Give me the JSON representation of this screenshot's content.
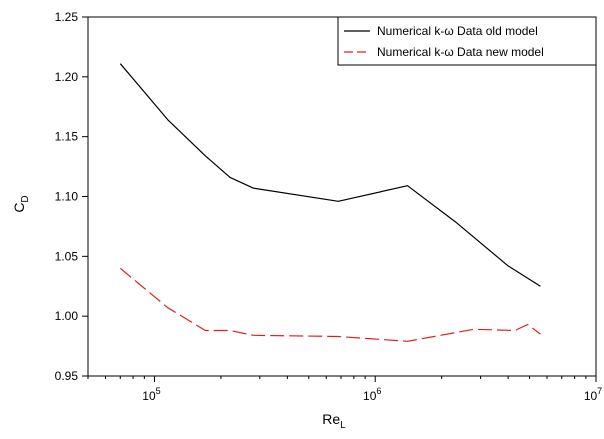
{
  "chart_data": {
    "type": "line",
    "xscale": "log",
    "xlim": [
      50000,
      10000000
    ],
    "ylim": [
      0.95,
      1.25
    ],
    "xlabel": "Re",
    "xlabel_sub": "L",
    "ylabel": "C",
    "ylabel_sub": "D",
    "grid": false,
    "legend_position": "top-right",
    "x_ticks": [
      {
        "value": 100000,
        "base": "10",
        "exp": "5"
      },
      {
        "value": 1000000,
        "base": "10",
        "exp": "6"
      },
      {
        "value": 10000000,
        "base": "10",
        "exp": "7"
      }
    ],
    "y_ticks": [
      "0.95",
      "1.00",
      "1.05",
      "1.10",
      "1.15",
      "1.20",
      "1.25"
    ],
    "series": [
      {
        "name": "Numerical k-ω Data old model",
        "color": "#000000",
        "style": "solid",
        "x": [
          70000,
          115000,
          170000,
          220000,
          280000,
          680000,
          1400000,
          2300000,
          4000000,
          5600000
        ],
        "y": [
          1.211,
          1.164,
          1.134,
          1.116,
          1.107,
          1.096,
          1.109,
          1.079,
          1.042,
          1.025
        ]
      },
      {
        "name": "Numerical k-ω Data new model",
        "color": "#e02020",
        "style": "dashed",
        "x": [
          70000,
          115000,
          170000,
          220000,
          280000,
          680000,
          1400000,
          2800000,
          4300000,
          4900000,
          5600000
        ],
        "y": [
          1.04,
          1.007,
          0.988,
          0.988,
          0.984,
          0.983,
          0.979,
          0.989,
          0.988,
          0.993,
          0.985
        ]
      }
    ]
  }
}
